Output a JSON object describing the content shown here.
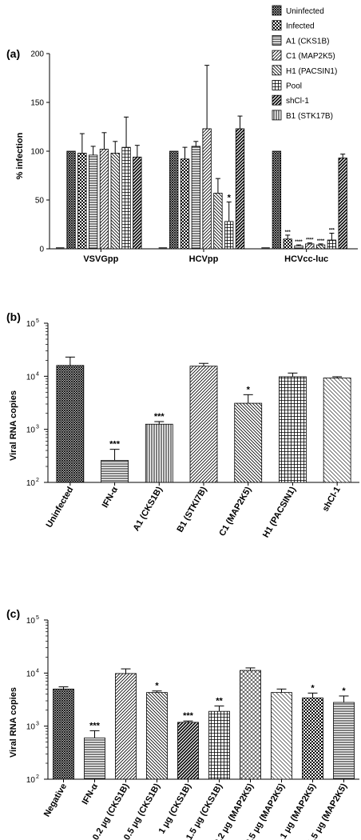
{
  "colors": {
    "ink": "#000000",
    "paper": "#ffffff",
    "gray": "#cccccc"
  },
  "chart_data": [
    {
      "panel": "(a)",
      "type": "bar",
      "ylabel": "% infection",
      "ylim": [
        0,
        200
      ],
      "yticks": [
        "0",
        "50",
        "100",
        "150",
        "200"
      ],
      "groups": [
        "VSVGpp",
        "HCVpp",
        "HCVcc-luc"
      ],
      "legend_placement": "top-right",
      "series": [
        {
          "name": "Uninfected",
          "pattern": "crosshatch-dense",
          "values": [
            100,
            100,
            100
          ],
          "errors": [
            0,
            0,
            0
          ],
          "stars": [
            "",
            "",
            ""
          ]
        },
        {
          "name": "Infected",
          "pattern": "checker",
          "values": [
            98,
            92,
            10
          ],
          "errors": [
            20,
            12,
            4
          ],
          "stars": [
            "",
            "",
            "***"
          ]
        },
        {
          "name": "A1 (CKS1B)",
          "pattern": "horizontal",
          "values": [
            96,
            105,
            3
          ],
          "errors": [
            9,
            5,
            1
          ],
          "stars": [
            "",
            "",
            "****"
          ]
        },
        {
          "name": "C1 (MAP2K5)",
          "pattern": "diag-up",
          "values": [
            102,
            123,
            5
          ],
          "errors": [
            17,
            65,
            1
          ],
          "stars": [
            "",
            "",
            "****"
          ]
        },
        {
          "name": "H1 (PACSIN1)",
          "pattern": "diag-down",
          "values": [
            98,
            57,
            4
          ],
          "errors": [
            12,
            15,
            1
          ],
          "stars": [
            "",
            "",
            "****"
          ]
        },
        {
          "name": "Pool",
          "pattern": "grid",
          "values": [
            104,
            28,
            9
          ],
          "errors": [
            31,
            20,
            7
          ],
          "stars": [
            "",
            "*",
            "***"
          ]
        },
        {
          "name": "shCl-1",
          "pattern": "diag-bold",
          "values": [
            94,
            123,
            93
          ],
          "errors": [
            12,
            13,
            4
          ],
          "stars": [
            "",
            "",
            ""
          ]
        },
        {
          "name": "B1 (STK17B)",
          "pattern": "vertical",
          "values": [
            0,
            0,
            0
          ],
          "errors": [
            0,
            0,
            0
          ],
          "stars": [
            "",
            "",
            ""
          ]
        }
      ]
    },
    {
      "panel": "(b)",
      "type": "bar",
      "scale": "log",
      "ylabel": "Viral RNA copies",
      "ylim": [
        100,
        100000
      ],
      "yticks": [
        "10",
        "10",
        "10",
        "10"
      ],
      "yticks_exp": [
        "2",
        "3",
        "4",
        "5"
      ],
      "categories": [
        "Uninfected",
        "IFN-α",
        "A1 (CKS1B)",
        "B1 (STKI7B)",
        "C1 (MAP2K5)",
        "H1 (PACSIN1)",
        "shCl-1"
      ],
      "values": [
        16000,
        260,
        1250,
        15500,
        3100,
        9800,
        9300
      ],
      "error_upper": [
        23000,
        420,
        1400,
        17500,
        4500,
        11500,
        9800
      ],
      "patterns": [
        "crosshatch-dense",
        "horizontal",
        "vertical",
        "diag-up",
        "diag-down",
        "grid",
        "diag-light"
      ],
      "stars": [
        "",
        "***",
        "***",
        "",
        "*",
        "",
        ""
      ]
    },
    {
      "panel": "(c)",
      "type": "bar",
      "scale": "log",
      "ylabel": "Viral RNA copies",
      "ylim": [
        100,
        100000
      ],
      "yticks": [
        "10",
        "10",
        "10",
        "10"
      ],
      "yticks_exp": [
        "2",
        "3",
        "4",
        "5"
      ],
      "categories": [
        "Negative",
        "IFN-α",
        "0.2 μg (CKS1B)",
        "0.5 μg (CKS1B)",
        "1 μg (CKS1B)",
        "1.5 μg (CKS1B)",
        "0.2 μg (MAP2K5)",
        "0.5 μg (MAP2K5)",
        "1 μg (MAP2K5)",
        "1.5 μg (MAP2K5)"
      ],
      "values": [
        5000,
        600,
        9800,
        4300,
        1180,
        1900,
        11200,
        4300,
        3400,
        2800
      ],
      "error_upper": [
        5500,
        820,
        12000,
        4600,
        1250,
        2400,
        12500,
        5000,
        4200,
        3700
      ],
      "patterns": [
        "crosshatch-dense",
        "horizontal",
        "diag-up",
        "diag-down",
        "diag-bold",
        "grid",
        "crosshatch-diag",
        "diag-light",
        "checker",
        "horizontal"
      ],
      "stars": [
        "",
        "***",
        "",
        "*",
        "***",
        "**",
        "",
        "",
        "*",
        "*"
      ]
    }
  ]
}
